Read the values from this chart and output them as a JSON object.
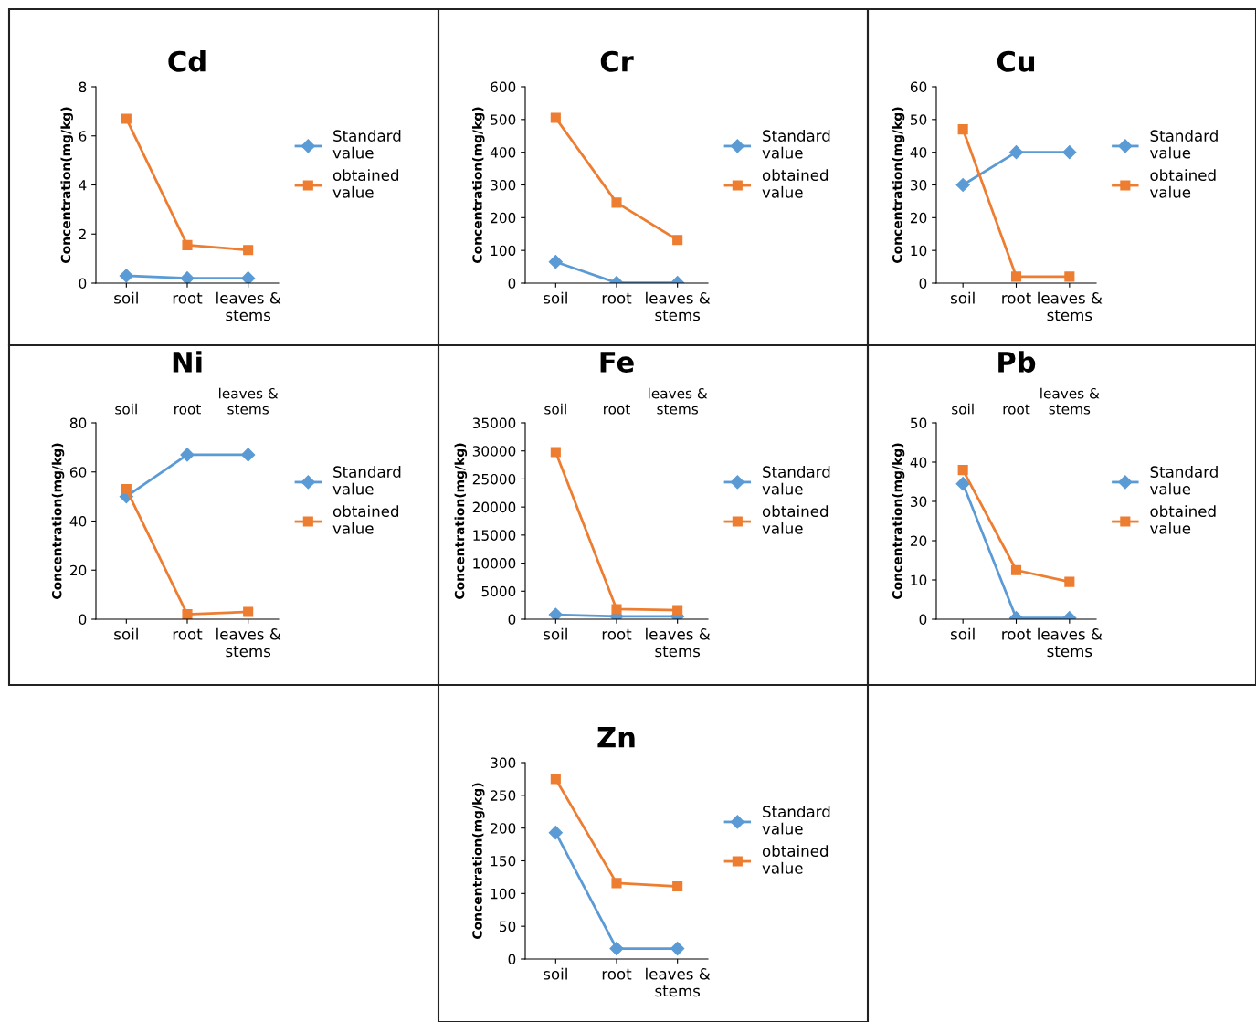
{
  "chart_data": [
    {
      "type": "line",
      "title": "Cd",
      "ylabel": "Concentration(mg/kg)",
      "categories": [
        "soil",
        "root",
        "leaves & stems"
      ],
      "ylim": [
        0,
        8
      ],
      "yticks": [
        0,
        2,
        4,
        6,
        8
      ],
      "legend": "right",
      "grid": false,
      "series": [
        {
          "name": "Standard value",
          "color": "#5b9bd5",
          "marker": "diamond",
          "values": [
            0.3,
            0.2,
            0.2
          ]
        },
        {
          "name": "obtained value",
          "color": "#ed7d31",
          "marker": "square",
          "values": [
            6.7,
            1.55,
            1.35
          ]
        }
      ]
    },
    {
      "type": "line",
      "title": "Cr",
      "ylabel": "Concentration(mg/kg)",
      "categories": [
        "soil",
        "root",
        "leaves & stems"
      ],
      "ylim": [
        0,
        600
      ],
      "yticks": [
        0,
        100,
        200,
        300,
        400,
        500,
        600
      ],
      "legend": "right",
      "grid": false,
      "series": [
        {
          "name": "Standard value",
          "color": "#5b9bd5",
          "marker": "diamond",
          "values": [
            65,
            1,
            1
          ]
        },
        {
          "name": "obtained value",
          "color": "#ed7d31",
          "marker": "square",
          "values": [
            505,
            246,
            132
          ]
        }
      ]
    },
    {
      "type": "line",
      "title": "Cu",
      "ylabel": "Concentration(mg/kg)",
      "categories": [
        "soil",
        "root",
        "leaves & stems"
      ],
      "ylim": [
        0,
        60
      ],
      "yticks": [
        0,
        10,
        20,
        30,
        40,
        50,
        60
      ],
      "legend": "right",
      "grid": false,
      "series": [
        {
          "name": "Standard value",
          "color": "#5b9bd5",
          "marker": "diamond",
          "values": [
            30,
            40,
            40
          ]
        },
        {
          "name": "obtained value",
          "color": "#ed7d31",
          "marker": "square",
          "values": [
            47,
            2,
            2
          ]
        }
      ]
    },
    {
      "type": "line",
      "title": "Ni",
      "ylabel": "Concentration(mg/kg)",
      "categories": [
        "soil",
        "root",
        "leaves & stems"
      ],
      "ylim": [
        0,
        80
      ],
      "yticks": [
        0,
        20,
        40,
        60,
        80
      ],
      "legend": "right",
      "grid": false,
      "annotations": [
        "soil",
        "root",
        "leaves & stems"
      ],
      "series": [
        {
          "name": "Standard value",
          "color": "#5b9bd5",
          "marker": "diamond",
          "values": [
            50,
            67,
            67
          ]
        },
        {
          "name": "obtained value",
          "color": "#ed7d31",
          "marker": "square",
          "values": [
            53,
            2,
            3
          ]
        }
      ]
    },
    {
      "type": "line",
      "title": "Fe",
      "ylabel": "Concentration(mg/kg)",
      "categories": [
        "soil",
        "root",
        "leaves & stems"
      ],
      "ylim": [
        0,
        35000
      ],
      "yticks": [
        0,
        5000,
        10000,
        15000,
        20000,
        25000,
        30000,
        35000
      ],
      "legend": "right",
      "grid": false,
      "annotations": [
        "soil",
        "root",
        "leaves & stems"
      ],
      "series": [
        {
          "name": "Standard value",
          "color": "#5b9bd5",
          "marker": "diamond",
          "values": [
            800,
            500,
            500
          ]
        },
        {
          "name": "obtained value",
          "color": "#ed7d31",
          "marker": "square",
          "values": [
            29800,
            1800,
            1600
          ]
        }
      ]
    },
    {
      "type": "line",
      "title": "Pb",
      "ylabel": "Concentration(mg/kg)",
      "categories": [
        "soil",
        "root",
        "leaves & stems"
      ],
      "ylim": [
        0,
        50
      ],
      "yticks": [
        0,
        10,
        20,
        30,
        40,
        50
      ],
      "legend": "right",
      "grid": false,
      "annotations": [
        "soil",
        "root",
        "leaves & stems"
      ],
      "series": [
        {
          "name": "Standard value",
          "color": "#5b9bd5",
          "marker": "diamond",
          "values": [
            34.5,
            0.3,
            0.3
          ]
        },
        {
          "name": "obtained value",
          "color": "#ed7d31",
          "marker": "square",
          "values": [
            38,
            12.5,
            9.5
          ]
        }
      ]
    },
    {
      "type": "line",
      "title": "Zn",
      "ylabel": "Concentration(mg/kg)",
      "categories": [
        "soil",
        "root",
        "leaves & stems"
      ],
      "ylim": [
        0,
        300
      ],
      "yticks": [
        0,
        50,
        100,
        150,
        200,
        250,
        300
      ],
      "legend": "right",
      "grid": false,
      "series": [
        {
          "name": "Standard value",
          "color": "#5b9bd5",
          "marker": "diamond",
          "values": [
            193,
            16,
            16
          ]
        },
        {
          "name": "obtained value",
          "color": "#ed7d31",
          "marker": "square",
          "values": [
            275,
            116,
            111
          ]
        }
      ]
    }
  ]
}
